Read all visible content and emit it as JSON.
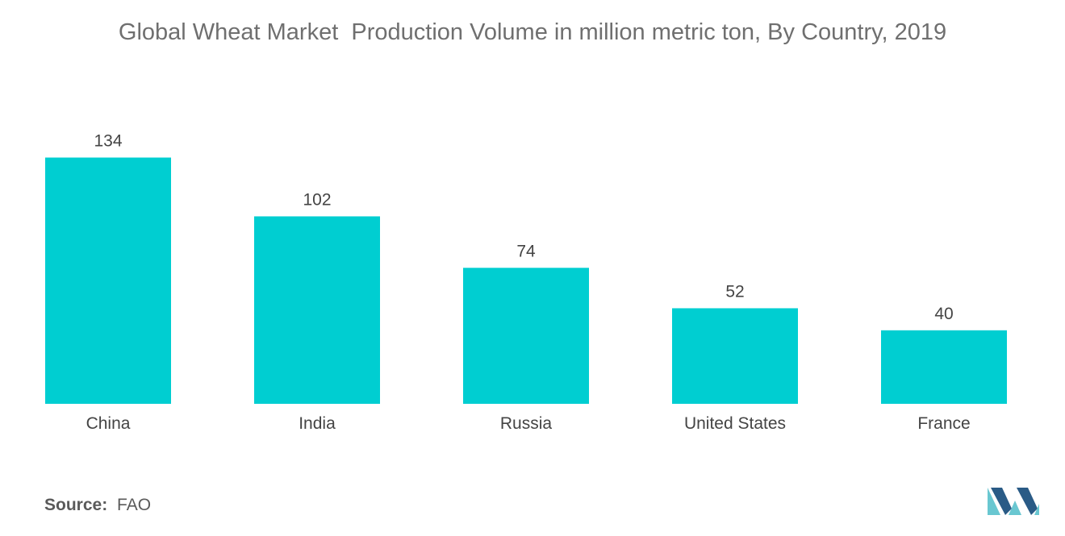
{
  "chart_data": {
    "type": "bar",
    "title": "Global Wheat Market  Production Volume in million metric ton, By Country, 2019",
    "categories": [
      "China",
      "India",
      "Russia",
      "United States",
      "France"
    ],
    "values": [
      134,
      102,
      74,
      52,
      40
    ],
    "xlabel": "",
    "ylabel": "",
    "grid": false,
    "legend": "none",
    "bar_color": "#00ced1"
  },
  "footer": {
    "source_label": "Source:",
    "source_value": "FAO"
  },
  "colors": {
    "bar": "#00ced1",
    "logo_light": "#69c7d1",
    "logo_dark": "#2a5b86"
  },
  "logo": {
    "icon": "mordor-intelligence-logo"
  }
}
